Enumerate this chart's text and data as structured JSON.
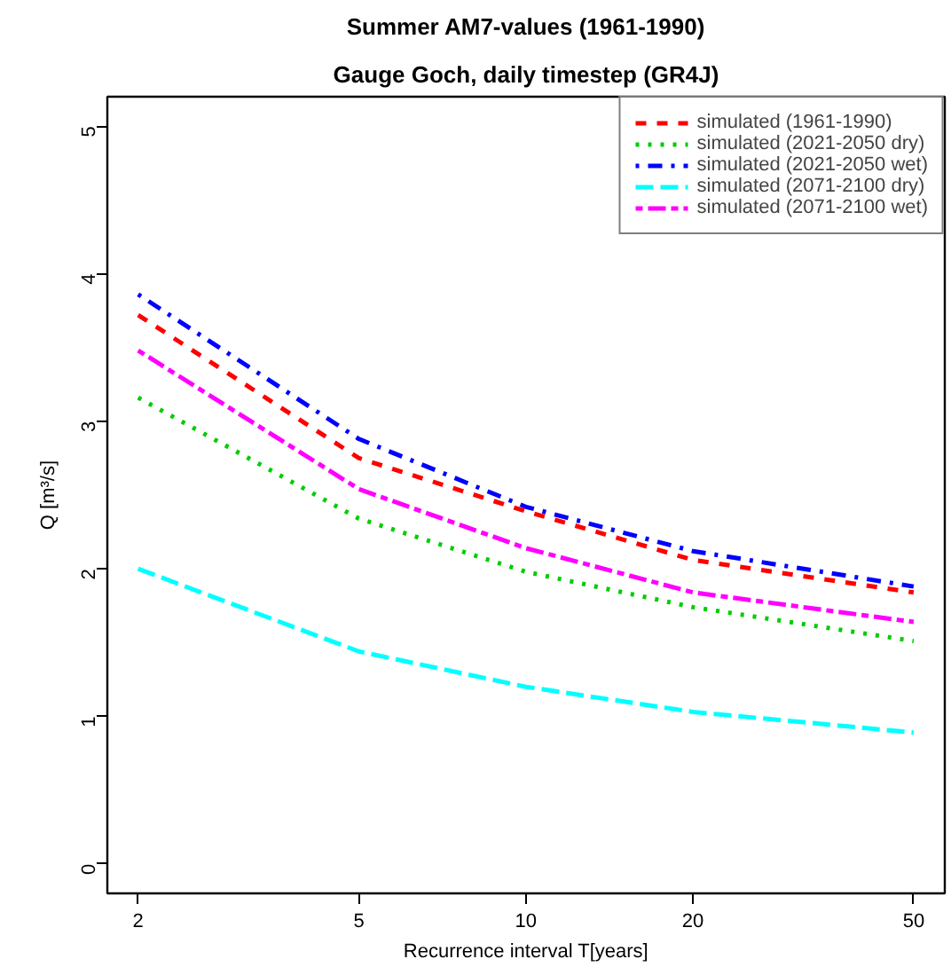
{
  "chart_data": {
    "type": "line",
    "title": "Summer AM7-values (1961-1990)",
    "subtitle": "Gauge Goch, daily timestep (GR4J)",
    "xlabel": "Recurrence interval T[years]",
    "ylabel": "Q [m³/s]",
    "log": "x",
    "xlim": [
      1.76,
      56.9
    ],
    "xticks": [
      2,
      5,
      10,
      20,
      50
    ],
    "ylim": [
      -0.2,
      5.2
    ],
    "yticks": [
      0,
      1,
      2,
      3,
      4,
      5
    ],
    "grid": false,
    "legend": "top right",
    "marker": "none",
    "x": [
      2,
      5,
      10,
      20,
      50
    ],
    "series": [
      {
        "name": "simulated (1961-1990)",
        "color": "#ff0000",
        "line_style": "dashed",
        "values": [
          3.72,
          2.75,
          2.39,
          2.06,
          1.84
        ]
      },
      {
        "name": "simulated (2021-2050 dry)",
        "color": "#00cd00",
        "line_style": "dotted",
        "values": [
          3.16,
          2.34,
          1.98,
          1.74,
          1.51
        ]
      },
      {
        "name": "simulated (2021-2050 wet)",
        "color": "#0000ff",
        "line_style": "dotdash",
        "values": [
          3.86,
          2.88,
          2.42,
          2.12,
          1.88
        ]
      },
      {
        "name": "simulated (2071-2100 dry)",
        "color": "#00ffff",
        "line_style": "longdash",
        "values": [
          2.0,
          1.44,
          1.2,
          1.03,
          0.89
        ]
      },
      {
        "name": "simulated (2071-2100 wet)",
        "color": "#ff00ff",
        "line_style": "twodash",
        "values": [
          3.48,
          2.54,
          2.14,
          1.84,
          1.64
        ]
      }
    ]
  }
}
